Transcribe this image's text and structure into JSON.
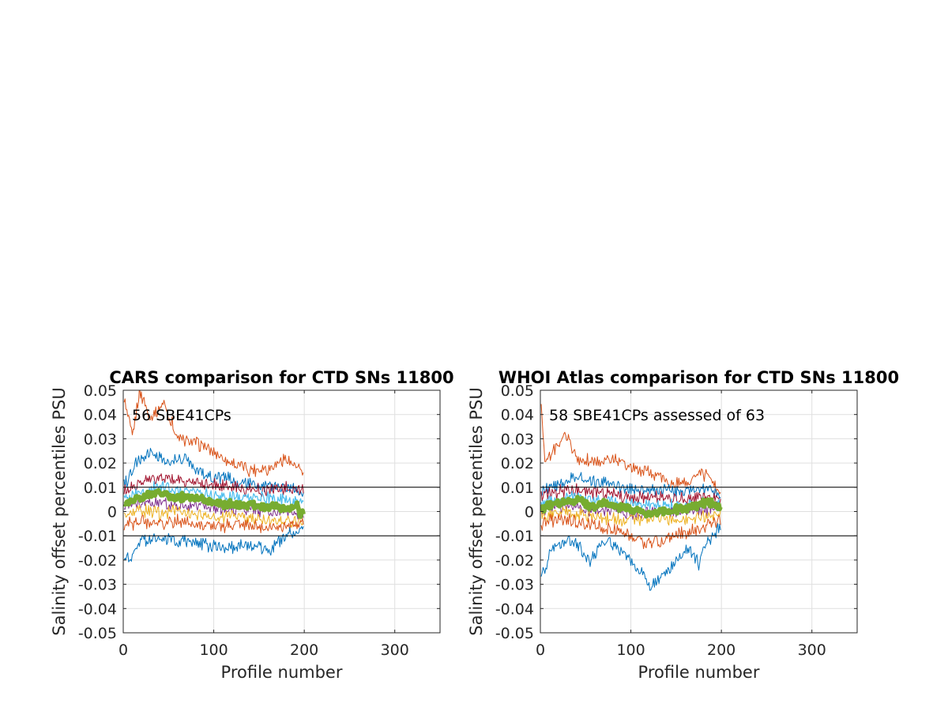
{
  "figure": {
    "background": "#ffffff",
    "colors": {
      "blue": "#0072bd",
      "orange": "#d95319",
      "yellow": "#edb120",
      "purple": "#7e2f8e",
      "green": "#77ac30",
      "cyan": "#4dbeee",
      "darkred": "#a2142f",
      "reference_lines": "#000000",
      "grid": "#dfdfdf"
    }
  },
  "chart_data": [
    {
      "type": "line",
      "title": "CARS comparison for CTD SNs 11800",
      "xlabel": "Profile number",
      "ylabel": "Salinity offset percentiles PSU",
      "xlim": [
        0,
        350
      ],
      "ylim": [
        -0.05,
        0.05
      ],
      "xticks": [
        0,
        100,
        200,
        300
      ],
      "xtick_labels": [
        "0",
        "100",
        "200",
        "300"
      ],
      "yticks": [
        -0.05,
        -0.04,
        -0.03,
        -0.02,
        -0.01,
        0,
        0.01,
        0.02,
        0.03,
        0.04,
        0.05
      ],
      "ytick_labels": [
        "-0.05",
        "-0.04",
        "-0.03",
        "-0.02",
        "-0.01",
        "0",
        "0.01",
        "0.02",
        "0.03",
        "0.04",
        "0.05"
      ],
      "grid": true,
      "reference_lines": [
        0.01,
        -0.01
      ],
      "annotation": "56 SBE41CPs",
      "x_range_of_series": [
        1,
        199
      ],
      "series": [
        {
          "color": "#d95319",
          "width": 1,
          "anchors": [
            [
              0,
              0.048
            ],
            [
              10,
              0.03
            ],
            [
              18,
              0.05
            ],
            [
              30,
              0.038
            ],
            [
              45,
              0.045
            ],
            [
              60,
              0.03
            ],
            [
              80,
              0.028
            ],
            [
              100,
              0.025
            ],
            [
              120,
              0.02
            ],
            [
              140,
              0.017
            ],
            [
              160,
              0.018
            ],
            [
              180,
              0.022
            ],
            [
              199,
              0.016
            ]
          ]
        },
        {
          "color": "#0072bd",
          "width": 1,
          "anchors": [
            [
              0,
              0.01
            ],
            [
              15,
              0.02
            ],
            [
              30,
              0.025
            ],
            [
              50,
              0.02
            ],
            [
              70,
              0.022
            ],
            [
              90,
              0.015
            ],
            [
              110,
              0.014
            ],
            [
              130,
              0.012
            ],
            [
              150,
              0.01
            ],
            [
              170,
              0.011
            ],
            [
              199,
              0.008
            ]
          ]
        },
        {
          "color": "#a2142f",
          "width": 1,
          "anchors": [
            [
              0,
              0.008
            ],
            [
              20,
              0.012
            ],
            [
              40,
              0.014
            ],
            [
              60,
              0.013
            ],
            [
              80,
              0.012
            ],
            [
              100,
              0.011
            ],
            [
              120,
              0.01
            ],
            [
              140,
              0.009
            ],
            [
              160,
              0.009
            ],
            [
              180,
              0.01
            ],
            [
              199,
              0.008
            ]
          ]
        },
        {
          "color": "#4dbeee",
          "width": 1.2,
          "anchors": [
            [
              0,
              0.005
            ],
            [
              20,
              0.008
            ],
            [
              40,
              0.01
            ],
            [
              60,
              0.009
            ],
            [
              80,
              0.008
            ],
            [
              100,
              0.007
            ],
            [
              120,
              0.006
            ],
            [
              140,
              0.006
            ],
            [
              160,
              0.005
            ],
            [
              180,
              0.005
            ],
            [
              199,
              0.004
            ]
          ]
        },
        {
          "color": "#7e2f8e",
          "width": 1,
          "anchors": [
            [
              0,
              0.002
            ],
            [
              20,
              0.003
            ],
            [
              40,
              0.004
            ],
            [
              60,
              0.003
            ],
            [
              80,
              0.002
            ],
            [
              100,
              0.002
            ],
            [
              120,
              0.001
            ],
            [
              140,
              0.001
            ],
            [
              160,
              0.0
            ],
            [
              180,
              0.0
            ],
            [
              199,
              -0.002
            ]
          ]
        },
        {
          "color": "#edb120",
          "width": 1,
          "anchors": [
            [
              0,
              -0.002
            ],
            [
              20,
              0.0
            ],
            [
              40,
              -0.001
            ],
            [
              60,
              0.0
            ],
            [
              80,
              -0.001
            ],
            [
              100,
              -0.002
            ],
            [
              120,
              -0.002
            ],
            [
              140,
              -0.003
            ],
            [
              160,
              -0.003
            ],
            [
              180,
              -0.004
            ],
            [
              199,
              -0.004
            ]
          ]
        },
        {
          "color": "#d95319",
          "width": 1,
          "anchors": [
            [
              0,
              -0.006
            ],
            [
              20,
              -0.004
            ],
            [
              40,
              -0.005
            ],
            [
              60,
              -0.004
            ],
            [
              80,
              -0.005
            ],
            [
              100,
              -0.006
            ],
            [
              120,
              -0.006
            ],
            [
              140,
              -0.006
            ],
            [
              160,
              -0.007
            ],
            [
              180,
              -0.006
            ],
            [
              199,
              -0.005
            ]
          ]
        },
        {
          "color": "#0072bd",
          "width": 1,
          "anchors": [
            [
              0,
              -0.02
            ],
            [
              10,
              -0.018
            ],
            [
              20,
              -0.012
            ],
            [
              40,
              -0.011
            ],
            [
              60,
              -0.012
            ],
            [
              80,
              -0.013
            ],
            [
              100,
              -0.014
            ],
            [
              120,
              -0.015
            ],
            [
              140,
              -0.014
            ],
            [
              160,
              -0.016
            ],
            [
              180,
              -0.01
            ],
            [
              199,
              -0.006
            ]
          ]
        },
        {
          "color": "#77ac30",
          "width": 6,
          "anchors": [
            [
              0,
              0.002
            ],
            [
              10,
              0.005
            ],
            [
              20,
              0.006
            ],
            [
              30,
              0.007
            ],
            [
              45,
              0.008
            ],
            [
              55,
              0.006
            ],
            [
              70,
              0.006
            ],
            [
              85,
              0.005
            ],
            [
              100,
              0.004
            ],
            [
              115,
              0.003
            ],
            [
              130,
              0.003
            ],
            [
              150,
              0.002
            ],
            [
              170,
              0.002
            ],
            [
              185,
              0.001
            ],
            [
              192,
              0.003
            ],
            [
              195,
              -0.002
            ],
            [
              199,
              0.0
            ]
          ]
        }
      ]
    },
    {
      "type": "line",
      "title": "WHOI Atlas comparison for CTD SNs 11800",
      "xlabel": "Profile number",
      "ylabel": "Salinity offset percentiles PSU",
      "xlim": [
        0,
        350
      ],
      "ylim": [
        -0.05,
        0.05
      ],
      "xticks": [
        0,
        100,
        200,
        300
      ],
      "xtick_labels": [
        "0",
        "100",
        "200",
        "300"
      ],
      "yticks": [
        -0.05,
        -0.04,
        -0.03,
        -0.02,
        -0.01,
        0,
        0.01,
        0.02,
        0.03,
        0.04,
        0.05
      ],
      "ytick_labels": [
        "-0.05",
        "-0.04",
        "-0.03",
        "-0.02",
        "-0.01",
        "0",
        "0.01",
        "0.02",
        "0.03",
        "0.04",
        "0.05"
      ],
      "grid": true,
      "reference_lines": [
        0.01,
        -0.01
      ],
      "annotation": "58 SBE41CPs assessed of 63",
      "x_range_of_series": [
        1,
        199
      ],
      "series": [
        {
          "color": "#d95319",
          "width": 1,
          "anchors": [
            [
              0,
              0.05
            ],
            [
              5,
              0.02
            ],
            [
              15,
              0.025
            ],
            [
              28,
              0.032
            ],
            [
              40,
              0.022
            ],
            [
              60,
              0.02
            ],
            [
              80,
              0.022
            ],
            [
              100,
              0.018
            ],
            [
              120,
              0.016
            ],
            [
              140,
              0.013
            ],
            [
              160,
              0.012
            ],
            [
              180,
              0.016
            ],
            [
              199,
              0.008
            ]
          ]
        },
        {
          "color": "#0072bd",
          "width": 1,
          "anchors": [
            [
              0,
              0.008
            ],
            [
              20,
              0.012
            ],
            [
              40,
              0.014
            ],
            [
              60,
              0.012
            ],
            [
              80,
              0.011
            ],
            [
              100,
              0.01
            ],
            [
              120,
              0.009
            ],
            [
              140,
              0.009
            ],
            [
              160,
              0.008
            ],
            [
              180,
              0.01
            ],
            [
              199,
              0.007
            ]
          ]
        },
        {
          "color": "#a2142f",
          "width": 1,
          "anchors": [
            [
              0,
              0.006
            ],
            [
              20,
              0.008
            ],
            [
              40,
              0.009
            ],
            [
              60,
              0.008
            ],
            [
              80,
              0.007
            ],
            [
              100,
              0.006
            ],
            [
              120,
              0.006
            ],
            [
              140,
              0.006
            ],
            [
              160,
              0.005
            ],
            [
              180,
              0.006
            ],
            [
              199,
              0.005
            ]
          ]
        },
        {
          "color": "#4dbeee",
          "width": 1.2,
          "anchors": [
            [
              0,
              0.003
            ],
            [
              20,
              0.005
            ],
            [
              40,
              0.006
            ],
            [
              60,
              0.004
            ],
            [
              80,
              0.004
            ],
            [
              100,
              0.003
            ],
            [
              120,
              0.002
            ],
            [
              140,
              0.002
            ],
            [
              160,
              0.003
            ],
            [
              180,
              0.004
            ],
            [
              199,
              0.003
            ]
          ]
        },
        {
          "color": "#7e2f8e",
          "width": 1,
          "anchors": [
            [
              0,
              0.001
            ],
            [
              20,
              0.002
            ],
            [
              40,
              0.002
            ],
            [
              60,
              0.0
            ],
            [
              80,
              0.001
            ],
            [
              100,
              -0.001
            ],
            [
              120,
              -0.001
            ],
            [
              140,
              0.0
            ],
            [
              160,
              0.0
            ],
            [
              180,
              0.001
            ],
            [
              199,
              0.001
            ]
          ]
        },
        {
          "color": "#edb120",
          "width": 1,
          "anchors": [
            [
              0,
              -0.002
            ],
            [
              20,
              0.0
            ],
            [
              40,
              -0.001
            ],
            [
              60,
              -0.002
            ],
            [
              80,
              -0.003
            ],
            [
              100,
              -0.004
            ],
            [
              120,
              -0.003
            ],
            [
              140,
              -0.003
            ],
            [
              160,
              -0.003
            ],
            [
              180,
              -0.002
            ],
            [
              199,
              -0.001
            ]
          ]
        },
        {
          "color": "#d95319",
          "width": 1,
          "anchors": [
            [
              0,
              -0.005
            ],
            [
              20,
              -0.003
            ],
            [
              40,
              -0.004
            ],
            [
              60,
              -0.006
            ],
            [
              80,
              -0.008
            ],
            [
              100,
              -0.01
            ],
            [
              120,
              -0.013
            ],
            [
              140,
              -0.011
            ],
            [
              160,
              -0.009
            ],
            [
              180,
              -0.006
            ],
            [
              199,
              -0.004
            ]
          ]
        },
        {
          "color": "#0072bd",
          "width": 1,
          "anchors": [
            [
              0,
              -0.028
            ],
            [
              5,
              -0.025
            ],
            [
              12,
              -0.015
            ],
            [
              25,
              -0.012
            ],
            [
              40,
              -0.013
            ],
            [
              55,
              -0.02
            ],
            [
              70,
              -0.012
            ],
            [
              85,
              -0.014
            ],
            [
              100,
              -0.02
            ],
            [
              112,
              -0.025
            ],
            [
              122,
              -0.031
            ],
            [
              135,
              -0.027
            ],
            [
              150,
              -0.02
            ],
            [
              165,
              -0.015
            ],
            [
              175,
              -0.022
            ],
            [
              185,
              -0.012
            ],
            [
              199,
              -0.006
            ]
          ]
        },
        {
          "color": "#77ac30",
          "width": 6,
          "anchors": [
            [
              0,
              0.001
            ],
            [
              15,
              0.003
            ],
            [
              30,
              0.004
            ],
            [
              45,
              0.005
            ],
            [
              55,
              0.002
            ],
            [
              70,
              0.003
            ],
            [
              85,
              0.002
            ],
            [
              100,
              0.001
            ],
            [
              115,
              -0.001
            ],
            [
              130,
              0.0
            ],
            [
              150,
              0.001
            ],
            [
              170,
              0.002
            ],
            [
              185,
              0.004
            ],
            [
              199,
              0.002
            ]
          ]
        }
      ]
    }
  ]
}
